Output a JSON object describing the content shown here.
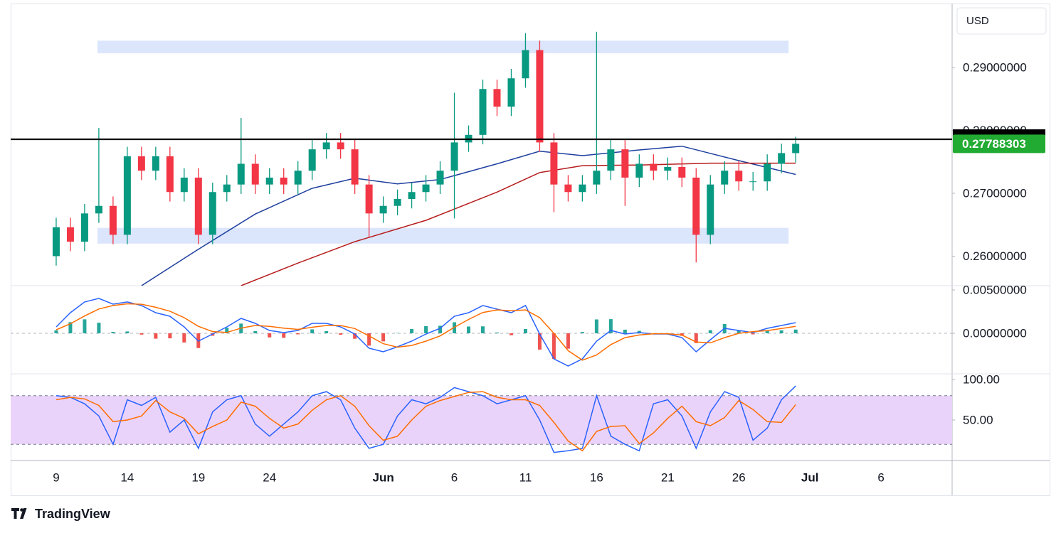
{
  "chart_data": [
    {
      "type": "candlestick",
      "currency": "USD",
      "up_color": "#089981",
      "down_color": "#f23645",
      "xlim": [
        5.8,
        72
      ],
      "xticks": [
        {
          "value": 9,
          "label": "9"
        },
        {
          "value": 14,
          "label": "14"
        },
        {
          "value": 19,
          "label": "19"
        },
        {
          "value": 24,
          "label": "24"
        },
        {
          "value": 32,
          "label": "Jun"
        },
        {
          "value": 37,
          "label": "6"
        },
        {
          "value": 42,
          "label": "11"
        },
        {
          "value": 47,
          "label": "16"
        },
        {
          "value": 52,
          "label": "21"
        },
        {
          "value": 57,
          "label": "26"
        },
        {
          "value": 62,
          "label": "Jul"
        },
        {
          "value": 67,
          "label": "6"
        }
      ],
      "ylim": [
        0.2553,
        0.3002
      ],
      "yticks": [
        {
          "value": 0.26,
          "label": "0.26000000"
        },
        {
          "value": 0.27,
          "label": "0.27000000"
        },
        {
          "value": 0.28,
          "label": "0.28000000"
        },
        {
          "value": 0.29,
          "label": "0.29000000"
        }
      ],
      "x": [
        9,
        10,
        11,
        12,
        13,
        14,
        15,
        16,
        17,
        18,
        19,
        20,
        21,
        22,
        23,
        24,
        25,
        26,
        27,
        28,
        29,
        30,
        31,
        32,
        33,
        34,
        35,
        36,
        37,
        38,
        39,
        40,
        41,
        42,
        43,
        44,
        45,
        46,
        47,
        48,
        49,
        50,
        51,
        52,
        53,
        54,
        55,
        56,
        57,
        58,
        59,
        60,
        61
      ],
      "open": [
        0.26,
        0.2646,
        0.2623,
        0.2668,
        0.268,
        0.2634,
        0.2759,
        0.2736,
        0.2759,
        0.2702,
        0.2725,
        0.2634,
        0.2702,
        0.2714,
        0.2747,
        0.2714,
        0.2725,
        0.2714,
        0.2736,
        0.277,
        0.2781,
        0.277,
        0.2714,
        0.2668,
        0.268,
        0.2691,
        0.2702,
        0.2714,
        0.2736,
        0.2781,
        0.2793,
        0.2866,
        0.2838,
        0.2883,
        0.2928,
        0.2781,
        0.2714,
        0.2702,
        0.2714,
        0.2736,
        0.277,
        0.2725,
        0.2747,
        0.2736,
        0.2742,
        0.2725,
        0.2634,
        0.2714,
        0.2736,
        0.2719,
        0.2719,
        0.2747,
        0.2764
      ],
      "high": [
        0.2661,
        0.2661,
        0.2683,
        0.2804,
        0.2695,
        0.2774,
        0.2774,
        0.2774,
        0.2774,
        0.274,
        0.274,
        0.2717,
        0.2729,
        0.282,
        0.2762,
        0.274,
        0.274,
        0.2751,
        0.2785,
        0.2796,
        0.2796,
        0.2785,
        0.2729,
        0.2695,
        0.2706,
        0.2717,
        0.2729,
        0.2751,
        0.286,
        0.2808,
        0.2881,
        0.2881,
        0.2898,
        0.2955,
        0.2943,
        0.2796,
        0.2729,
        0.2729,
        0.2957,
        0.2785,
        0.2785,
        0.2762,
        0.2762,
        0.2757,
        0.2757,
        0.274,
        0.2729,
        0.2751,
        0.2751,
        0.2734,
        0.2762,
        0.2779,
        0.279
      ],
      "low": [
        0.2585,
        0.2608,
        0.2608,
        0.2653,
        0.2619,
        0.2619,
        0.2721,
        0.2721,
        0.2687,
        0.2687,
        0.2619,
        0.2619,
        0.2687,
        0.2699,
        0.2699,
        0.2699,
        0.2699,
        0.2699,
        0.2721,
        0.2755,
        0.2755,
        0.2699,
        0.263,
        0.2653,
        0.2665,
        0.2676,
        0.2687,
        0.2699,
        0.266,
        0.2766,
        0.2778,
        0.2823,
        0.2823,
        0.2868,
        0.2766,
        0.267,
        0.2687,
        0.2687,
        0.2699,
        0.2721,
        0.268,
        0.271,
        0.2721,
        0.2721,
        0.271,
        0.259,
        0.2619,
        0.2699,
        0.2704,
        0.2704,
        0.2704,
        0.2732,
        0.2749
      ],
      "close": [
        0.2646,
        0.2623,
        0.2668,
        0.268,
        0.2634,
        0.2759,
        0.2736,
        0.2759,
        0.2702,
        0.2725,
        0.2634,
        0.2702,
        0.2714,
        0.2747,
        0.2714,
        0.2725,
        0.2714,
        0.2736,
        0.277,
        0.2781,
        0.277,
        0.2714,
        0.2668,
        0.268,
        0.2691,
        0.2702,
        0.2714,
        0.2736,
        0.2781,
        0.2793,
        0.2866,
        0.2838,
        0.2883,
        0.2928,
        0.2781,
        0.2714,
        0.2702,
        0.2714,
        0.2736,
        0.277,
        0.2725,
        0.2747,
        0.2736,
        0.2742,
        0.2725,
        0.2634,
        0.2714,
        0.2736,
        0.2719,
        0.2719,
        0.2747,
        0.2764,
        0.27788303
      ],
      "last_price": 0.27788303,
      "last_price_color": "#22ab32",
      "moving_averages": [
        {
          "color": "#1e3f9e",
          "x": [
            15,
            19,
            23,
            27,
            30,
            33,
            36,
            40,
            43,
            46,
            50,
            53,
            57,
            61
          ],
          "values": [
            0.2553,
            0.2611,
            0.2667,
            0.2708,
            0.2724,
            0.2715,
            0.2722,
            0.2747,
            0.2767,
            0.276,
            0.2769,
            0.2775,
            0.2752,
            0.273
          ]
        },
        {
          "color": "#b71c1c",
          "x": [
            22,
            26,
            30,
            35,
            40,
            43,
            46,
            50,
            55,
            61
          ],
          "values": [
            0.2553,
            0.2589,
            0.2623,
            0.2657,
            0.2702,
            0.2733,
            0.2744,
            0.2745,
            0.2748,
            0.2748
          ]
        }
      ],
      "zones": [
        {
          "color": "#dbe5fb",
          "x": [
            11.9,
            60.5
          ],
          "y": [
            0.2923,
            0.2943
          ]
        },
        {
          "color": "#dbe5fb",
          "x": [
            11.9,
            60.5
          ],
          "y": [
            0.262,
            0.2645
          ]
        }
      ],
      "level": {
        "value": 0.2786,
        "color": "#000000"
      }
    },
    {
      "type": "macd",
      "ylim": [
        -0.00467,
        0.00549
      ],
      "yticks": [
        {
          "value": 0,
          "label": "0.00000000"
        },
        {
          "value": 0.005,
          "label": "0.00500000"
        }
      ],
      "histogram": {
        "up_color": "#26a69a",
        "down_color": "#ef5350",
        "values": [
          0.00034,
          0.00128,
          0.00161,
          0.00122,
          0.00016,
          0.00021,
          -0.00015,
          -0.00062,
          -0.00058,
          -0.00106,
          -0.0017,
          -0.00028,
          0.00064,
          0.00112,
          0.00025,
          -0.00047,
          -0.00052,
          -0.00012,
          0.00045,
          0.00025,
          -0.00016,
          -0.00063,
          -0.00142,
          -0.00093,
          4e-05,
          0.0005,
          0.00082,
          0.00087,
          0.00127,
          0.00078,
          0.0008,
          9e-05,
          -0.00022,
          0.0005,
          -0.00188,
          -0.00295,
          -0.00177,
          0.00015,
          0.0016,
          0.00163,
          0.00042,
          0.00028,
          -3e-05,
          -3e-05,
          -0.00029,
          -0.00113,
          0.00036,
          0.00107,
          0.00033,
          -0.00012,
          0.00027,
          0.00035,
          0.00043
        ]
      },
      "series": [
        {
          "color": "#2962ff",
          "values": [
            0.00074,
            0.00238,
            0.00361,
            0.00402,
            0.00336,
            0.00361,
            0.0032,
            0.00238,
            0.00197,
            0.00074,
            -0.0009,
            -8e-05,
            0.00074,
            0.00172,
            0.00115,
            0.00033,
            8e-05,
            0.00033,
            0.00115,
            0.00115,
            0.00074,
            -8e-05,
            -0.00172,
            -0.00213,
            -0.00156,
            -0.0009,
            -8e-05,
            0.00057,
            0.00197,
            0.00238,
            0.0032,
            0.00279,
            0.00238,
            0.0032,
            -8e-05,
            -0.00295,
            -0.00377,
            -0.00295,
            -0.0009,
            0.00033,
            -8e-05,
            8e-05,
            -8e-05,
            -8e-05,
            -0.00049,
            -0.00213,
            -0.00074,
            0.00057,
            0.00033,
            8e-05,
            0.00057,
            0.0009,
            0.00123
          ]
        },
        {
          "color": "#ff6d00",
          "values": [
            0.0004,
            0.0011,
            0.002,
            0.0028,
            0.0032,
            0.0034,
            0.00335,
            0.003,
            0.00255,
            0.0018,
            0.0008,
            0.0002,
            0.0001,
            0.0006,
            0.0009,
            0.0008,
            0.0006,
            0.00045,
            0.0007,
            0.0009,
            0.0009,
            0.00055,
            -0.0003,
            -0.0012,
            -0.0016,
            -0.0014,
            -0.0009,
            -0.0003,
            0.0007,
            0.0016,
            0.0024,
            0.0027,
            0.0026,
            0.0027,
            0.0018,
            0,
            -0.002,
            -0.0031,
            -0.0025,
            -0.0013,
            -0.0005,
            -0.0002,
            -5e-05,
            -5e-05,
            -0.0002,
            -0.001,
            -0.0011,
            -0.0005,
            0,
            0.0002,
            0.0003,
            0.00055,
            0.0008
          ]
        }
      ]
    },
    {
      "type": "line",
      "ylim": [
        0,
        107
      ],
      "yticks": [
        {
          "value": 50,
          "label": "50.00"
        },
        {
          "value": 100,
          "label": "100.00"
        }
      ],
      "bands": [
        20,
        80
      ],
      "band_color": "#ead3fb",
      "series": [
        {
          "color": "#2962ff",
          "values": [
            80,
            78,
            70,
            55,
            20,
            75,
            68,
            78,
            35,
            50,
            15,
            60,
            75,
            80,
            45,
            30,
            45,
            60,
            80,
            85,
            75,
            40,
            15,
            20,
            55,
            75,
            70,
            78,
            90,
            85,
            80,
            70,
            75,
            80,
            50,
            10,
            12,
            15,
            80,
            30,
            20,
            12,
            70,
            75,
            55,
            15,
            60,
            85,
            78,
            25,
            40,
            75,
            92
          ]
        },
        {
          "color": "#ff6d00",
          "values": [
            75,
            78,
            76,
            68,
            48,
            50,
            55,
            74,
            60,
            52,
            33,
            42,
            50,
            72,
            67,
            52,
            40,
            45,
            62,
            75,
            80,
            67,
            43,
            25,
            30,
            50,
            67,
            74,
            79,
            84,
            85,
            78,
            75,
            75,
            68,
            47,
            24,
            12,
            36,
            42,
            43,
            21,
            34,
            52,
            67,
            48,
            43,
            53,
            74,
            63,
            48,
            47,
            69
          ]
        }
      ]
    }
  ],
  "brand": "TradingView"
}
